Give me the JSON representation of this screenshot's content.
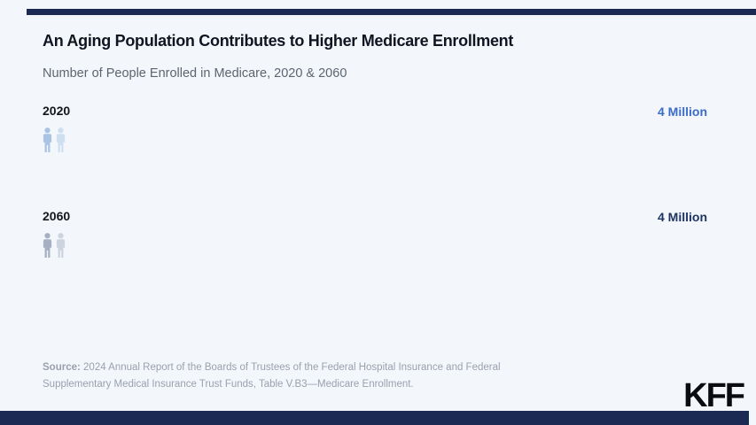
{
  "page": {
    "background": "#f3f6fb",
    "accent_bar_color": "#1a2a52"
  },
  "header": {
    "title": "An Aging Population Contributes to Higher Medicare Enrollment",
    "subtitle": "Number of People Enrolled in Medicare, 2020 & 2060"
  },
  "chart_data": {
    "type": "bar",
    "variant": "pictogram",
    "title": "An Aging Population Contributes to Higher Medicare Enrollment",
    "subtitle": "Number of People Enrolled in Medicare, 2020 & 2060",
    "unit": "Million",
    "categories": [
      "2020",
      "2060"
    ],
    "series": [
      {
        "year": "2020",
        "value": 4,
        "value_label": "4 Million",
        "icon_count": 2,
        "color": "#3b6cc7",
        "icon_colors": [
          "#a9c3e4",
          "#cfdff2"
        ]
      },
      {
        "year": "2060",
        "value": 4,
        "value_label": "4 Million",
        "icon_count": 2,
        "color": "#1e3462",
        "icon_colors": [
          "#a6b0c2",
          "#cdd4df"
        ]
      }
    ],
    "legend": "none",
    "grid": "off"
  },
  "source": {
    "label": "Source:",
    "lines": [
      "2024 Annual Report of the Boards of Trustees of the Federal Hospital Insurance and Federal",
      "Supplementary Medical Insurance Trust Funds, Table V.B3—Medicare Enrollment."
    ]
  },
  "branding": {
    "logo": "KFF"
  },
  "icons": {
    "person_icon": "person-icon"
  }
}
